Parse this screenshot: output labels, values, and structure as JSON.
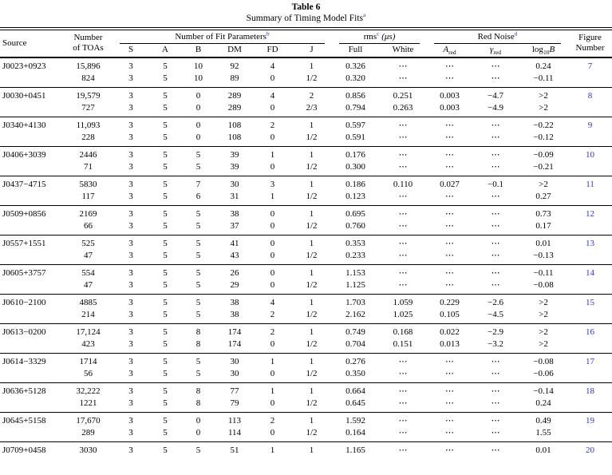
{
  "title": "Table 6",
  "subtitle": "Summary of Timing Model Fits",
  "subtitle_note": "a",
  "colors": {
    "link": "#3333cc",
    "text": "#000000",
    "rule": "#000000"
  },
  "header": {
    "source": "Source",
    "toas_line1": "Number",
    "toas_line2": "of TOAs",
    "fit_params": {
      "label": "Number of Fit Parameters",
      "note": "b",
      "subcols": [
        "S",
        "A",
        "B",
        "DM",
        "FD",
        "J"
      ]
    },
    "rms": {
      "label": "rms",
      "note": "c",
      "unit": "(μs)",
      "subcols": [
        "Full",
        "White"
      ]
    },
    "red_noise": {
      "label": "Red Noise",
      "note": "d",
      "ared": {
        "base": "A",
        "sub": "red"
      },
      "gred": {
        "base": "γ",
        "sub": "red"
      },
      "logb": {
        "base": "log",
        "sub": "10",
        "var": "B"
      }
    },
    "figure_line1": "Figure",
    "figure_line2": "Number"
  },
  "rows": [
    {
      "source": "J0023+0923",
      "figure": "7",
      "lines": [
        [
          "15,896",
          "3",
          "5",
          "10",
          "92",
          "4",
          "1",
          "0.326",
          "⋯",
          "⋯",
          "⋯",
          "0.24"
        ],
        [
          "824",
          "3",
          "5",
          "10",
          "89",
          "0",
          "1/2",
          "0.320",
          "⋯",
          "⋯",
          "⋯",
          "−0.11"
        ]
      ]
    },
    {
      "source": "J0030+0451",
      "figure": "8",
      "lines": [
        [
          "19,579",
          "3",
          "5",
          "0",
          "289",
          "4",
          "2",
          "0.856",
          "0.251",
          "0.003",
          "−4.7",
          ">2"
        ],
        [
          "727",
          "3",
          "5",
          "0",
          "289",
          "0",
          "2/3",
          "0.794",
          "0.263",
          "0.003",
          "−4.9",
          ">2"
        ]
      ]
    },
    {
      "source": "J0340+4130",
      "figure": "9",
      "lines": [
        [
          "11,093",
          "3",
          "5",
          "0",
          "108",
          "2",
          "1",
          "0.597",
          "⋯",
          "⋯",
          "⋯",
          "−0.22"
        ],
        [
          "228",
          "3",
          "5",
          "0",
          "108",
          "0",
          "1/2",
          "0.591",
          "⋯",
          "⋯",
          "⋯",
          "−0.12"
        ]
      ]
    },
    {
      "source": "J0406+3039",
      "figure": "10",
      "lines": [
        [
          "2446",
          "3",
          "5",
          "5",
          "39",
          "1",
          "1",
          "0.176",
          "⋯",
          "⋯",
          "⋯",
          "−0.09"
        ],
        [
          "71",
          "3",
          "5",
          "5",
          "39",
          "0",
          "1/2",
          "0.300",
          "⋯",
          "⋯",
          "⋯",
          "−0.21"
        ]
      ]
    },
    {
      "source": "J0437−4715",
      "figure": "11",
      "lines": [
        [
          "5830",
          "3",
          "5",
          "7",
          "30",
          "3",
          "1",
          "0.186",
          "0.110",
          "0.027",
          "−0.1",
          ">2"
        ],
        [
          "117",
          "3",
          "5",
          "6",
          "31",
          "1",
          "1/2",
          "0.123",
          "⋯",
          "⋯",
          "⋯",
          "0.27"
        ]
      ]
    },
    {
      "source": "J0509+0856",
      "figure": "12",
      "lines": [
        [
          "2169",
          "3",
          "5",
          "5",
          "38",
          "0",
          "1",
          "0.695",
          "⋯",
          "⋯",
          "⋯",
          "0.73"
        ],
        [
          "66",
          "3",
          "5",
          "5",
          "37",
          "0",
          "1/2",
          "0.760",
          "⋯",
          "⋯",
          "⋯",
          "0.17"
        ]
      ]
    },
    {
      "source": "J0557+1551",
      "figure": "13",
      "lines": [
        [
          "525",
          "3",
          "5",
          "5",
          "41",
          "0",
          "1",
          "0.353",
          "⋯",
          "⋯",
          "⋯",
          "0.01"
        ],
        [
          "47",
          "3",
          "5",
          "5",
          "43",
          "0",
          "1/2",
          "0.233",
          "⋯",
          "⋯",
          "⋯",
          "−0.13"
        ]
      ]
    },
    {
      "source": "J0605+3757",
      "figure": "14",
      "lines": [
        [
          "554",
          "3",
          "5",
          "5",
          "26",
          "0",
          "1",
          "1.153",
          "⋯",
          "⋯",
          "⋯",
          "−0.11"
        ],
        [
          "47",
          "3",
          "5",
          "5",
          "29",
          "0",
          "1/2",
          "1.125",
          "⋯",
          "⋯",
          "⋯",
          "−0.08"
        ]
      ]
    },
    {
      "source": "J0610−2100",
      "figure": "15",
      "lines": [
        [
          "4885",
          "3",
          "5",
          "5",
          "38",
          "4",
          "1",
          "1.703",
          "1.059",
          "0.229",
          "−2.6",
          ">2"
        ],
        [
          "214",
          "3",
          "5",
          "5",
          "38",
          "2",
          "1/2",
          "2.162",
          "1.025",
          "0.105",
          "−4.5",
          ">2"
        ]
      ]
    },
    {
      "source": "J0613−0200",
      "figure": "16",
      "lines": [
        [
          "17,124",
          "3",
          "5",
          "8",
          "174",
          "2",
          "1",
          "0.749",
          "0.168",
          "0.022",
          "−2.9",
          ">2"
        ],
        [
          "423",
          "3",
          "5",
          "8",
          "174",
          "0",
          "1/2",
          "0.704",
          "0.151",
          "0.013",
          "−3.2",
          ">2"
        ]
      ]
    },
    {
      "source": "J0614−3329",
      "figure": "17",
      "lines": [
        [
          "1714",
          "3",
          "5",
          "5",
          "30",
          "1",
          "1",
          "0.276",
          "⋯",
          "⋯",
          "⋯",
          "−0.08"
        ],
        [
          "56",
          "3",
          "5",
          "5",
          "30",
          "0",
          "1/2",
          "0.350",
          "⋯",
          "⋯",
          "⋯",
          "−0.06"
        ]
      ]
    },
    {
      "source": "J0636+5128",
      "figure": "18",
      "lines": [
        [
          "32,222",
          "3",
          "5",
          "8",
          "77",
          "1",
          "1",
          "0.664",
          "⋯",
          "⋯",
          "⋯",
          "−0.14"
        ],
        [
          "1221",
          "3",
          "5",
          "8",
          "79",
          "0",
          "1/2",
          "0.645",
          "⋯",
          "⋯",
          "⋯",
          "0.24"
        ]
      ]
    },
    {
      "source": "J0645+5158",
      "figure": "19",
      "lines": [
        [
          "17,670",
          "3",
          "5",
          "0",
          "113",
          "2",
          "1",
          "1.592",
          "⋯",
          "⋯",
          "⋯",
          "0.49"
        ],
        [
          "289",
          "3",
          "5",
          "0",
          "114",
          "0",
          "1/2",
          "0.164",
          "⋯",
          "⋯",
          "⋯",
          "1.55"
        ]
      ]
    },
    {
      "source": "J0709+0458",
      "figure": "20",
      "lines": [
        [
          "3030",
          "3",
          "5",
          "5",
          "51",
          "1",
          "1",
          "1.165",
          "⋯",
          "⋯",
          "⋯",
          "0.01"
        ]
      ]
    }
  ]
}
